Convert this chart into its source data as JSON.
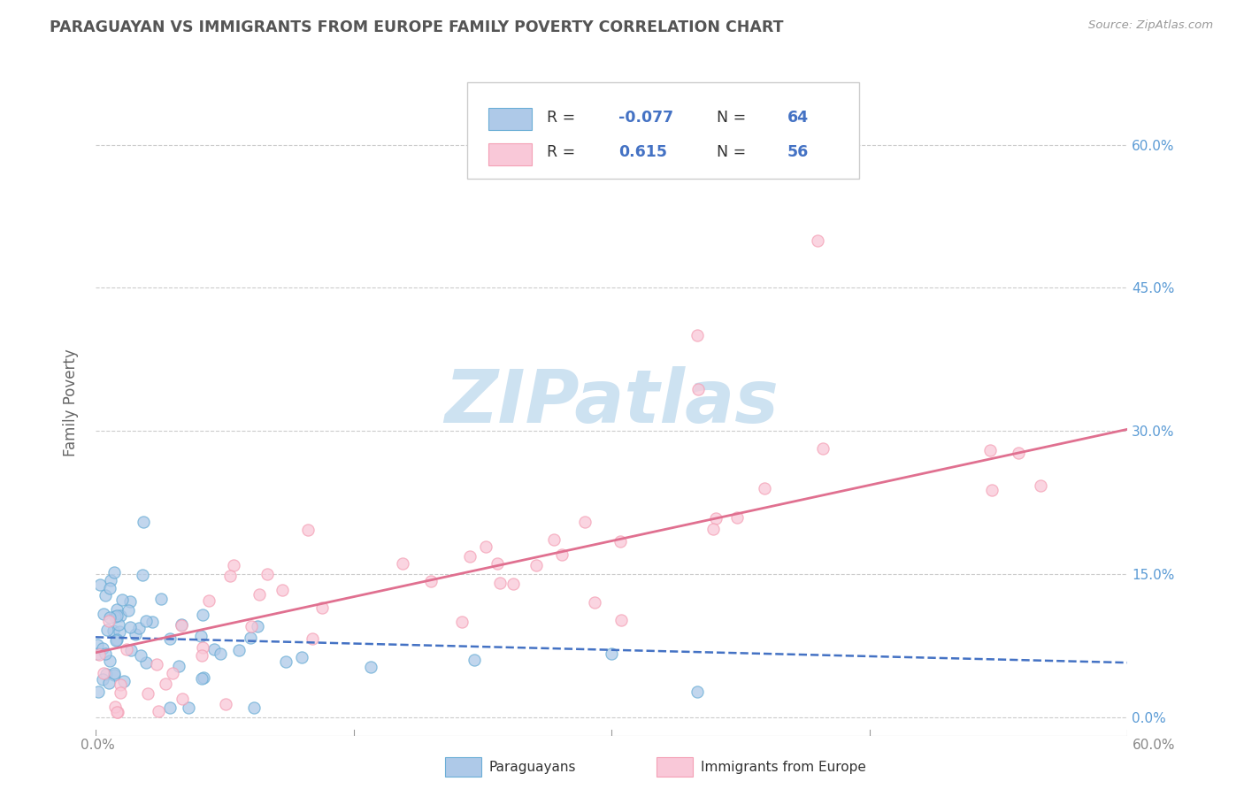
{
  "title": "PARAGUAYAN VS IMMIGRANTS FROM EUROPE FAMILY POVERTY CORRELATION CHART",
  "source": "Source: ZipAtlas.com",
  "ylabel": "Family Poverty",
  "right_yticks": [
    0.0,
    0.15,
    0.3,
    0.45,
    0.6
  ],
  "right_yticklabels": [
    "0.0%",
    "15.0%",
    "30.0%",
    "45.0%",
    "60.0%"
  ],
  "xlim": [
    0.0,
    0.6
  ],
  "ylim": [
    -0.02,
    0.68
  ],
  "paraguayan_R": -0.077,
  "paraguayan_N": 64,
  "europe_R": 0.615,
  "europe_N": 56,
  "blue_color": "#6baed6",
  "blue_fill": "#aec9e8",
  "pink_color": "#f4a0b5",
  "pink_fill": "#f9c8d8",
  "blue_line_color": "#4472c4",
  "pink_line_color": "#e07090",
  "watermark_color": "#c8dff0",
  "legend_label_blue": "Paraguayans",
  "legend_label_pink": "Immigrants from Europe"
}
